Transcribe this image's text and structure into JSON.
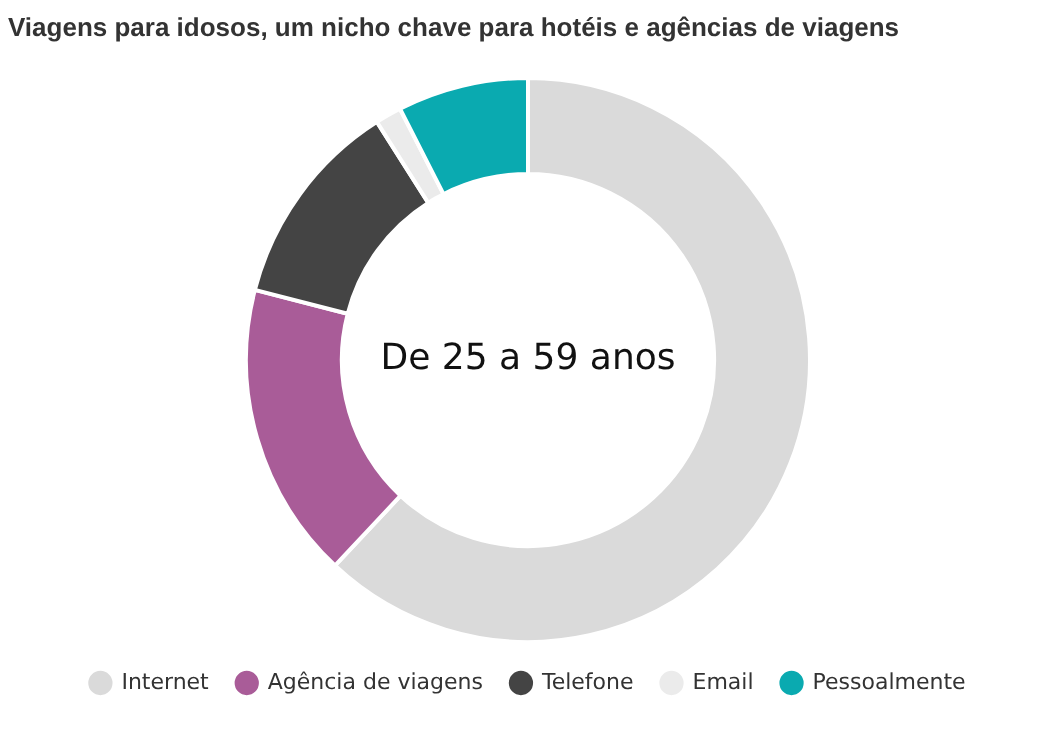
{
  "chart_data": {
    "type": "donut",
    "title": "Viagens para idosos, um nicho chave para hotéis e agências de viagens",
    "subtitle": "De 25 a 59 anos",
    "categories": [
      "Internet",
      "Agência de viagens",
      "Telefone",
      "Email",
      "Pessoalmente"
    ],
    "values": [
      62,
      17,
      12,
      1.5,
      7.5
    ],
    "colors": [
      "#dadada",
      "#a95c98",
      "#444444",
      "#ebebeb",
      "#0aaab0"
    ],
    "legend": "bottom"
  }
}
